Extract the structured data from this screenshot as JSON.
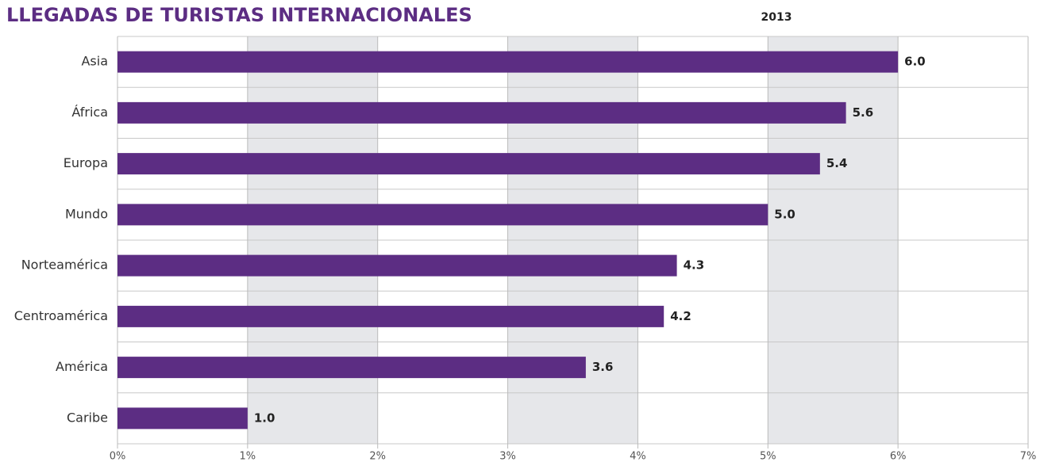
{
  "chart_data": {
    "type": "bar",
    "orientation": "horizontal",
    "title": "LLEGADAS DE TURISTAS INTERNACIONALES",
    "subtitle": "2013",
    "categories": [
      "Asia",
      "África",
      "Europa",
      "Mundo",
      "Norteamérica",
      "Centroamérica",
      "América",
      "Caribe"
    ],
    "values": [
      6.0,
      5.6,
      5.4,
      5.0,
      4.3,
      4.2,
      3.6,
      1.0
    ],
    "value_labels": [
      "6.0",
      "5.6",
      "5.4",
      "5.0",
      "4.3",
      "4.2",
      "3.6",
      "1.0"
    ],
    "color": "#5c2d83",
    "xlim": [
      0,
      7
    ],
    "xticks": [
      {
        "value": 0,
        "label": "0%"
      },
      {
        "value": 1,
        "label": "1%"
      },
      {
        "value": 2,
        "label": "2%"
      },
      {
        "value": 3,
        "label": "3%"
      },
      {
        "value": 4,
        "label": "4%"
      },
      {
        "value": 5,
        "label": "5%"
      },
      {
        "value": 6,
        "label": "6%"
      },
      {
        "value": 7,
        "label": "7%"
      }
    ],
    "grid": true
  }
}
